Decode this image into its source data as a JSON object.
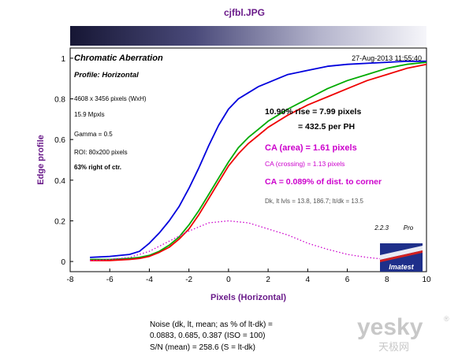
{
  "window_title": "cjfbl.JPG",
  "chart_data": {
    "type": "line",
    "title": "Chromatic Aberration",
    "subtitle": "Profile: Horizontal",
    "timestamp": "27-Aug-2013 11:55:40",
    "xlabel": "Pixels (Horizontal)",
    "ylabel": "Edge profile",
    "xlim": [
      -8,
      10
    ],
    "ylim": [
      -0.05,
      1.05
    ],
    "x_ticks": [
      "-8",
      "-6",
      "-4",
      "-2",
      "0",
      "2",
      "4",
      "6",
      "8",
      "10"
    ],
    "y_ticks": [
      "0",
      "0.2",
      "0.4",
      "0.6",
      "0.8",
      "1"
    ],
    "grid": false,
    "series": [
      {
        "color": "#0000dd",
        "style": "solid",
        "x": [
          -7,
          -6,
          -5,
          -4.5,
          -4,
          -3.5,
          -3,
          -2.5,
          -2,
          -1.5,
          -1,
          -0.5,
          0,
          0.5,
          1,
          1.5,
          2,
          2.5,
          3,
          4,
          5,
          6,
          7,
          8,
          9,
          10
        ],
        "y": [
          0.02,
          0.025,
          0.035,
          0.05,
          0.09,
          0.14,
          0.2,
          0.27,
          0.36,
          0.46,
          0.57,
          0.67,
          0.75,
          0.8,
          0.83,
          0.86,
          0.88,
          0.9,
          0.92,
          0.94,
          0.96,
          0.97,
          0.975,
          0.98,
          0.985,
          0.985
        ]
      },
      {
        "color": "#00aa00",
        "style": "solid",
        "x": [
          -7,
          -6,
          -5,
          -4.5,
          -4,
          -3.5,
          -3,
          -2.5,
          -2,
          -1.5,
          -1,
          -0.5,
          0,
          0.5,
          1,
          1.5,
          2,
          2.5,
          3,
          4,
          5,
          6,
          7,
          8,
          9,
          10
        ],
        "y": [
          0.01,
          0.01,
          0.015,
          0.02,
          0.03,
          0.05,
          0.08,
          0.12,
          0.18,
          0.25,
          0.33,
          0.41,
          0.49,
          0.56,
          0.61,
          0.65,
          0.69,
          0.72,
          0.75,
          0.8,
          0.85,
          0.89,
          0.92,
          0.95,
          0.97,
          0.98
        ]
      },
      {
        "color": "#ee0000",
        "style": "solid",
        "x": [
          -7,
          -6,
          -5,
          -4.5,
          -4,
          -3.5,
          -3,
          -2.5,
          -2,
          -1.5,
          -1,
          -0.5,
          0,
          0.5,
          1,
          1.5,
          2,
          2.5,
          3,
          4,
          5,
          6,
          7,
          8,
          9,
          10
        ],
        "y": [
          0.005,
          0.005,
          0.01,
          0.015,
          0.025,
          0.045,
          0.07,
          0.11,
          0.16,
          0.23,
          0.31,
          0.39,
          0.47,
          0.53,
          0.58,
          0.62,
          0.66,
          0.69,
          0.72,
          0.77,
          0.81,
          0.85,
          0.89,
          0.92,
          0.95,
          0.97
        ]
      },
      {
        "color": "#cc00cc",
        "style": "dotted",
        "x": [
          -7,
          -6,
          -5,
          -4,
          -3,
          -2,
          -1,
          0,
          1,
          2,
          3,
          4,
          5,
          6,
          7,
          8
        ],
        "y": [
          0.005,
          0.01,
          0.02,
          0.05,
          0.1,
          0.15,
          0.19,
          0.2,
          0.19,
          0.16,
          0.13,
          0.09,
          0.06,
          0.035,
          0.02,
          0.01
        ]
      }
    ],
    "annotations": {
      "image_size": "4608 x 3456 pixels (WxH)",
      "mpxls": "15.9 Mpxls",
      "gamma": "Gamma = 0.5",
      "roi": "ROI: 80x200 pixels",
      "position": "63% right of ctr.",
      "rise_line1": "10.90% rise = 7.99 pixels",
      "rise_line2": "= 432.5 per PH",
      "ca_area": "CA (area) = 1.61 pixels",
      "ca_crossing": "CA (crossing) = 1.13 pixels",
      "ca_dist": "CA = 0.089% of dist. to corner",
      "levels": "Dk, lt lvls = 13.8, 186.7;  lt/dk = 13.5",
      "version": "2.2.3",
      "edition": "Pro",
      "logo_text": "Imatest"
    }
  },
  "noise_text": {
    "line1": "Noise (dk, lt, mean; as % of lt-dk) =",
    "line2": "0.0883,  0.685,  0.387  (ISO =  100)",
    "line3": "S/N (mean) = 258.6  (S = lt-dk)"
  },
  "watermark": {
    "latin": "yesky",
    "chinese": "天极网",
    "registered": "®"
  },
  "colors": {
    "title": "#6a1b8a",
    "axis_label": "#6a1b8a",
    "magenta": "#cc00cc",
    "gradient_dark": "#1a1a3a",
    "gradient_light": "#f4f4f8"
  }
}
